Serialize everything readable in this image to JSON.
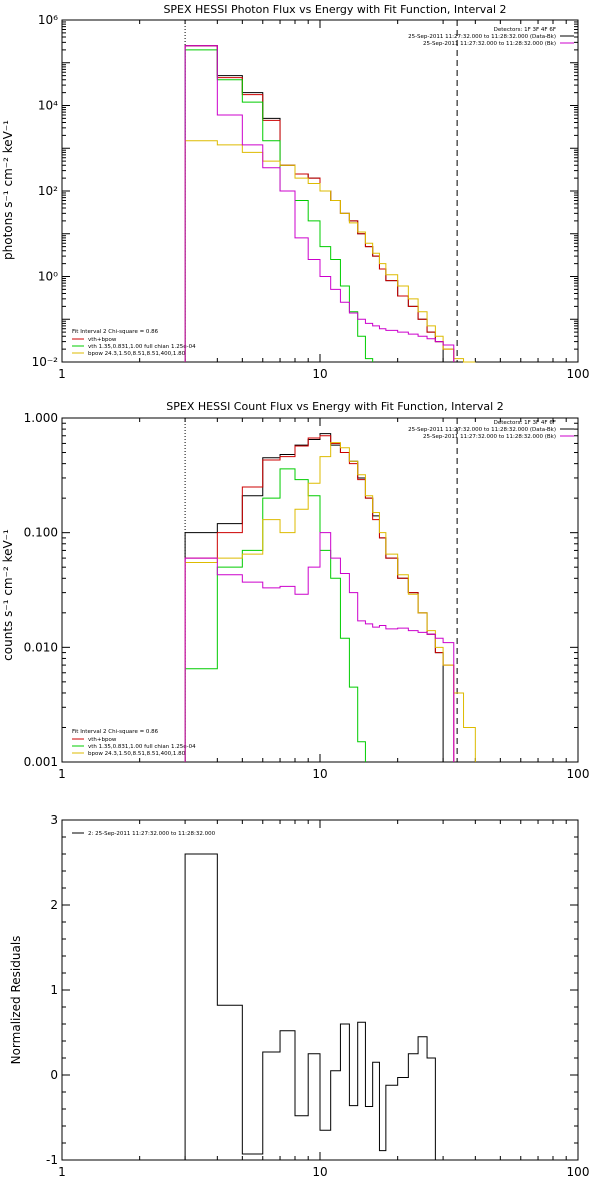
{
  "colors": {
    "background": "#ffffff",
    "axis": "#000000",
    "total": "#000000",
    "fit": "#cc0000",
    "vth": "#00cc00",
    "bpow": "#ddbb00",
    "bkg": "#cc00cc"
  },
  "chart_data": [
    {
      "type": "line",
      "title": "SPEX HESSI Photon Flux vs Energy with Fit Function, Interval 2",
      "xlabel": "",
      "ylabel": "photons s⁻¹ cm⁻² keV⁻¹",
      "xscale": "log",
      "yscale": "log",
      "xlim": [
        1,
        100
      ],
      "ylim": [
        0.01,
        1000000
      ],
      "xticks": [
        1,
        10,
        100
      ],
      "xtick_labels": [
        "1",
        "10",
        "100"
      ],
      "yticks": [
        0.01,
        1,
        100,
        10000,
        1000000
      ],
      "ytick_labels": [
        "10⁻²",
        "10⁰",
        "10²",
        "10⁴",
        "10⁶"
      ],
      "vlines": [
        {
          "x": 3.0,
          "style": "dotted"
        },
        {
          "x": 34.0,
          "style": "dashed"
        }
      ],
      "legend_tr": [
        "Detectors: 1F 3F 4F 6F",
        "25-Sep-2011 11:27:32.000 to 11:28:32.000 (Data-Bk)",
        "25-Sep-2011 11:27:32.000 to 11:28:32.000 (Bk)"
      ],
      "legend_bl": [
        "Fit Interval  2   Chi-square = 0.86",
        "vth+bpow",
        "vth 1.35,0.831,1.00  full chian 1.25e-04",
        "bpow 24.3,1.50,8.51,8.51,400,1.80"
      ],
      "edges": [
        3,
        4,
        5,
        6,
        7,
        8,
        9,
        10,
        11,
        12,
        13,
        14,
        15,
        16,
        17,
        18,
        20,
        22,
        24,
        26,
        28,
        30,
        33,
        36,
        40,
        45
      ],
      "series": [
        {
          "name": "Data-Bk",
          "key": "data",
          "color": "#000000",
          "values": [
            250000,
            50000,
            20000,
            5000,
            400,
            250,
            200,
            100,
            60,
            30,
            20,
            10,
            5,
            3,
            1.5,
            0.8,
            0.35,
            0.2,
            0.1,
            0.05,
            0.03,
            null,
            null,
            null,
            null
          ]
        },
        {
          "name": "vth+bpow",
          "key": "fit",
          "color": "#cc0000",
          "values": [
            250000,
            45000,
            18000,
            4500,
            400,
            250,
            200,
            100,
            60,
            30,
            20,
            10,
            5,
            3,
            1.5,
            0.8,
            0.35,
            0.2,
            0.1,
            0.05,
            0.03,
            0.02,
            null,
            null,
            null
          ]
        },
        {
          "name": "vth",
          "key": "vth",
          "color": "#00cc00",
          "values": [
            200000,
            40000,
            12000,
            1500,
            100,
            60,
            20,
            5,
            2.5,
            0.6,
            0.15,
            0.04,
            0.012,
            null,
            null,
            null,
            null,
            null,
            null,
            null,
            null,
            null,
            null,
            null,
            null
          ]
        },
        {
          "name": "bpow",
          "key": "bpow",
          "color": "#ddbb00",
          "values": [
            1500,
            1200,
            800,
            500,
            400,
            200,
            150,
            100,
            60,
            30,
            18,
            11,
            6,
            3.5,
            2,
            1.1,
            0.6,
            0.3,
            0.15,
            0.07,
            0.04,
            0.02,
            0.012,
            0.01,
            null
          ]
        },
        {
          "name": "Bk",
          "key": "bkg",
          "color": "#cc00cc",
          "values": [
            250000,
            6000,
            1200,
            350,
            100,
            8,
            2.5,
            1,
            0.5,
            0.25,
            0.14,
            0.1,
            0.08,
            0.07,
            0.06,
            0.055,
            0.05,
            0.045,
            0.04,
            0.035,
            0.03,
            0.025,
            null,
            null,
            null
          ]
        }
      ]
    },
    {
      "type": "line",
      "title": "SPEX HESSI Count Flux vs Energy with Fit Function, Interval 2",
      "xlabel": "",
      "ylabel": "counts s⁻¹ cm⁻² keV⁻¹",
      "xscale": "log",
      "yscale": "log",
      "xlim": [
        1,
        100
      ],
      "ylim": [
        0.001,
        1.0
      ],
      "xticks": [
        1,
        10,
        100
      ],
      "xtick_labels": [
        "1",
        "10",
        "100"
      ],
      "yticks": [
        0.001,
        0.01,
        0.1,
        1.0
      ],
      "ytick_labels": [
        "0.001",
        "0.010",
        "0.100",
        "1.000"
      ],
      "vlines": [
        {
          "x": 3.0,
          "style": "dotted"
        },
        {
          "x": 34.0,
          "style": "dashed"
        }
      ],
      "legend_tr": [
        "Detectors: 1F 3F 4F 6F",
        "25-Sep-2011 11:27:32.000 to 11:28:32.000 (Data-Bk)",
        "25-Sep-2011 11:27:32.000 to 11:28:32.000 (Bk)"
      ],
      "legend_bl": [
        "Fit Interval  2   Chi-square = 0.86",
        "vth+bpow",
        "vth 1.35,0.831,1.00  full chian 1.25e-04",
        "bpow 24.3,1.50,8.51,8.51,400,1.80"
      ],
      "edges": [
        3,
        4,
        5,
        6,
        7,
        8,
        9,
        10,
        11,
        12,
        13,
        14,
        15,
        16,
        17,
        18,
        20,
        22,
        24,
        26,
        28,
        30,
        33,
        36,
        40,
        45
      ],
      "series": [
        {
          "name": "Data-Bk",
          "key": "data",
          "color": "#000000",
          "values": [
            0.1,
            0.12,
            0.21,
            0.45,
            0.48,
            0.58,
            0.65,
            0.73,
            0.58,
            0.5,
            0.42,
            0.3,
            0.2,
            0.14,
            0.09,
            0.06,
            0.04,
            0.03,
            0.02,
            0.013,
            0.009,
            null,
            null,
            null,
            null
          ]
        },
        {
          "name": "vth+bpow",
          "key": "fit",
          "color": "#cc0000",
          "values": [
            0.06,
            0.1,
            0.25,
            0.43,
            0.46,
            0.57,
            0.67,
            0.7,
            0.6,
            0.5,
            0.4,
            0.29,
            0.2,
            0.13,
            0.09,
            0.06,
            0.04,
            0.03,
            0.02,
            0.013,
            0.009,
            0.007,
            null,
            null,
            null
          ]
        },
        {
          "name": "vth",
          "key": "vth",
          "color": "#00cc00",
          "values": [
            0.0065,
            0.05,
            0.07,
            0.2,
            0.36,
            0.29,
            0.21,
            0.07,
            0.04,
            0.012,
            0.0045,
            0.0015,
            null,
            null,
            null,
            null,
            null,
            null,
            null,
            null,
            null,
            null,
            null,
            null,
            null
          ]
        },
        {
          "name": "bpow",
          "key": "bpow",
          "color": "#ddbb00",
          "values": [
            0.055,
            0.06,
            0.065,
            0.13,
            0.1,
            0.16,
            0.27,
            0.46,
            0.61,
            0.55,
            0.42,
            0.32,
            0.21,
            0.15,
            0.1,
            0.065,
            0.043,
            0.029,
            0.02,
            0.014,
            0.01,
            0.007,
            0.004,
            0.002,
            null
          ]
        },
        {
          "name": "Bk",
          "key": "bkg",
          "color": "#cc00cc",
          "values": [
            0.06,
            0.043,
            0.037,
            0.033,
            0.034,
            0.029,
            0.05,
            0.1,
            0.06,
            0.044,
            0.03,
            0.017,
            0.016,
            0.015,
            0.0155,
            0.0145,
            0.0147,
            0.014,
            0.0135,
            0.013,
            0.012,
            0.011,
            null,
            null,
            null
          ]
        }
      ]
    },
    {
      "type": "line",
      "title": "",
      "xlabel": "",
      "ylabel": "Normalized Residuals",
      "xscale": "log",
      "yscale": "linear",
      "xlim": [
        1,
        100
      ],
      "ylim": [
        -1,
        3
      ],
      "xticks": [
        1,
        10,
        100
      ],
      "xtick_labels": [
        "1",
        "10",
        "100"
      ],
      "yticks": [
        -1,
        0,
        1,
        2,
        3
      ],
      "ytick_labels": [
        "-1",
        "0",
        "1",
        "2",
        "3"
      ],
      "legend_tl": [
        "2: 25-Sep-2011 11:27:32.000 to 11:28:32.000"
      ],
      "edges": [
        3,
        4,
        5,
        6,
        7,
        8,
        9,
        10,
        11,
        12,
        13,
        14,
        15,
        16,
        17,
        18,
        20,
        22,
        24,
        26,
        28,
        30,
        33
      ],
      "series": [
        {
          "name": "2: 25-Sep-2011 11:27:32.000 to 11:28:32.000",
          "key": "resid",
          "color": "#000000",
          "values": [
            2.6,
            0.82,
            -0.93,
            0.27,
            0.52,
            -0.48,
            0.25,
            -0.65,
            0.05,
            0.6,
            -0.36,
            0.62,
            -0.37,
            0.15,
            -0.89,
            -0.12,
            -0.03,
            0.25,
            0.45,
            0.2,
            -1.0,
            null
          ]
        }
      ]
    }
  ]
}
